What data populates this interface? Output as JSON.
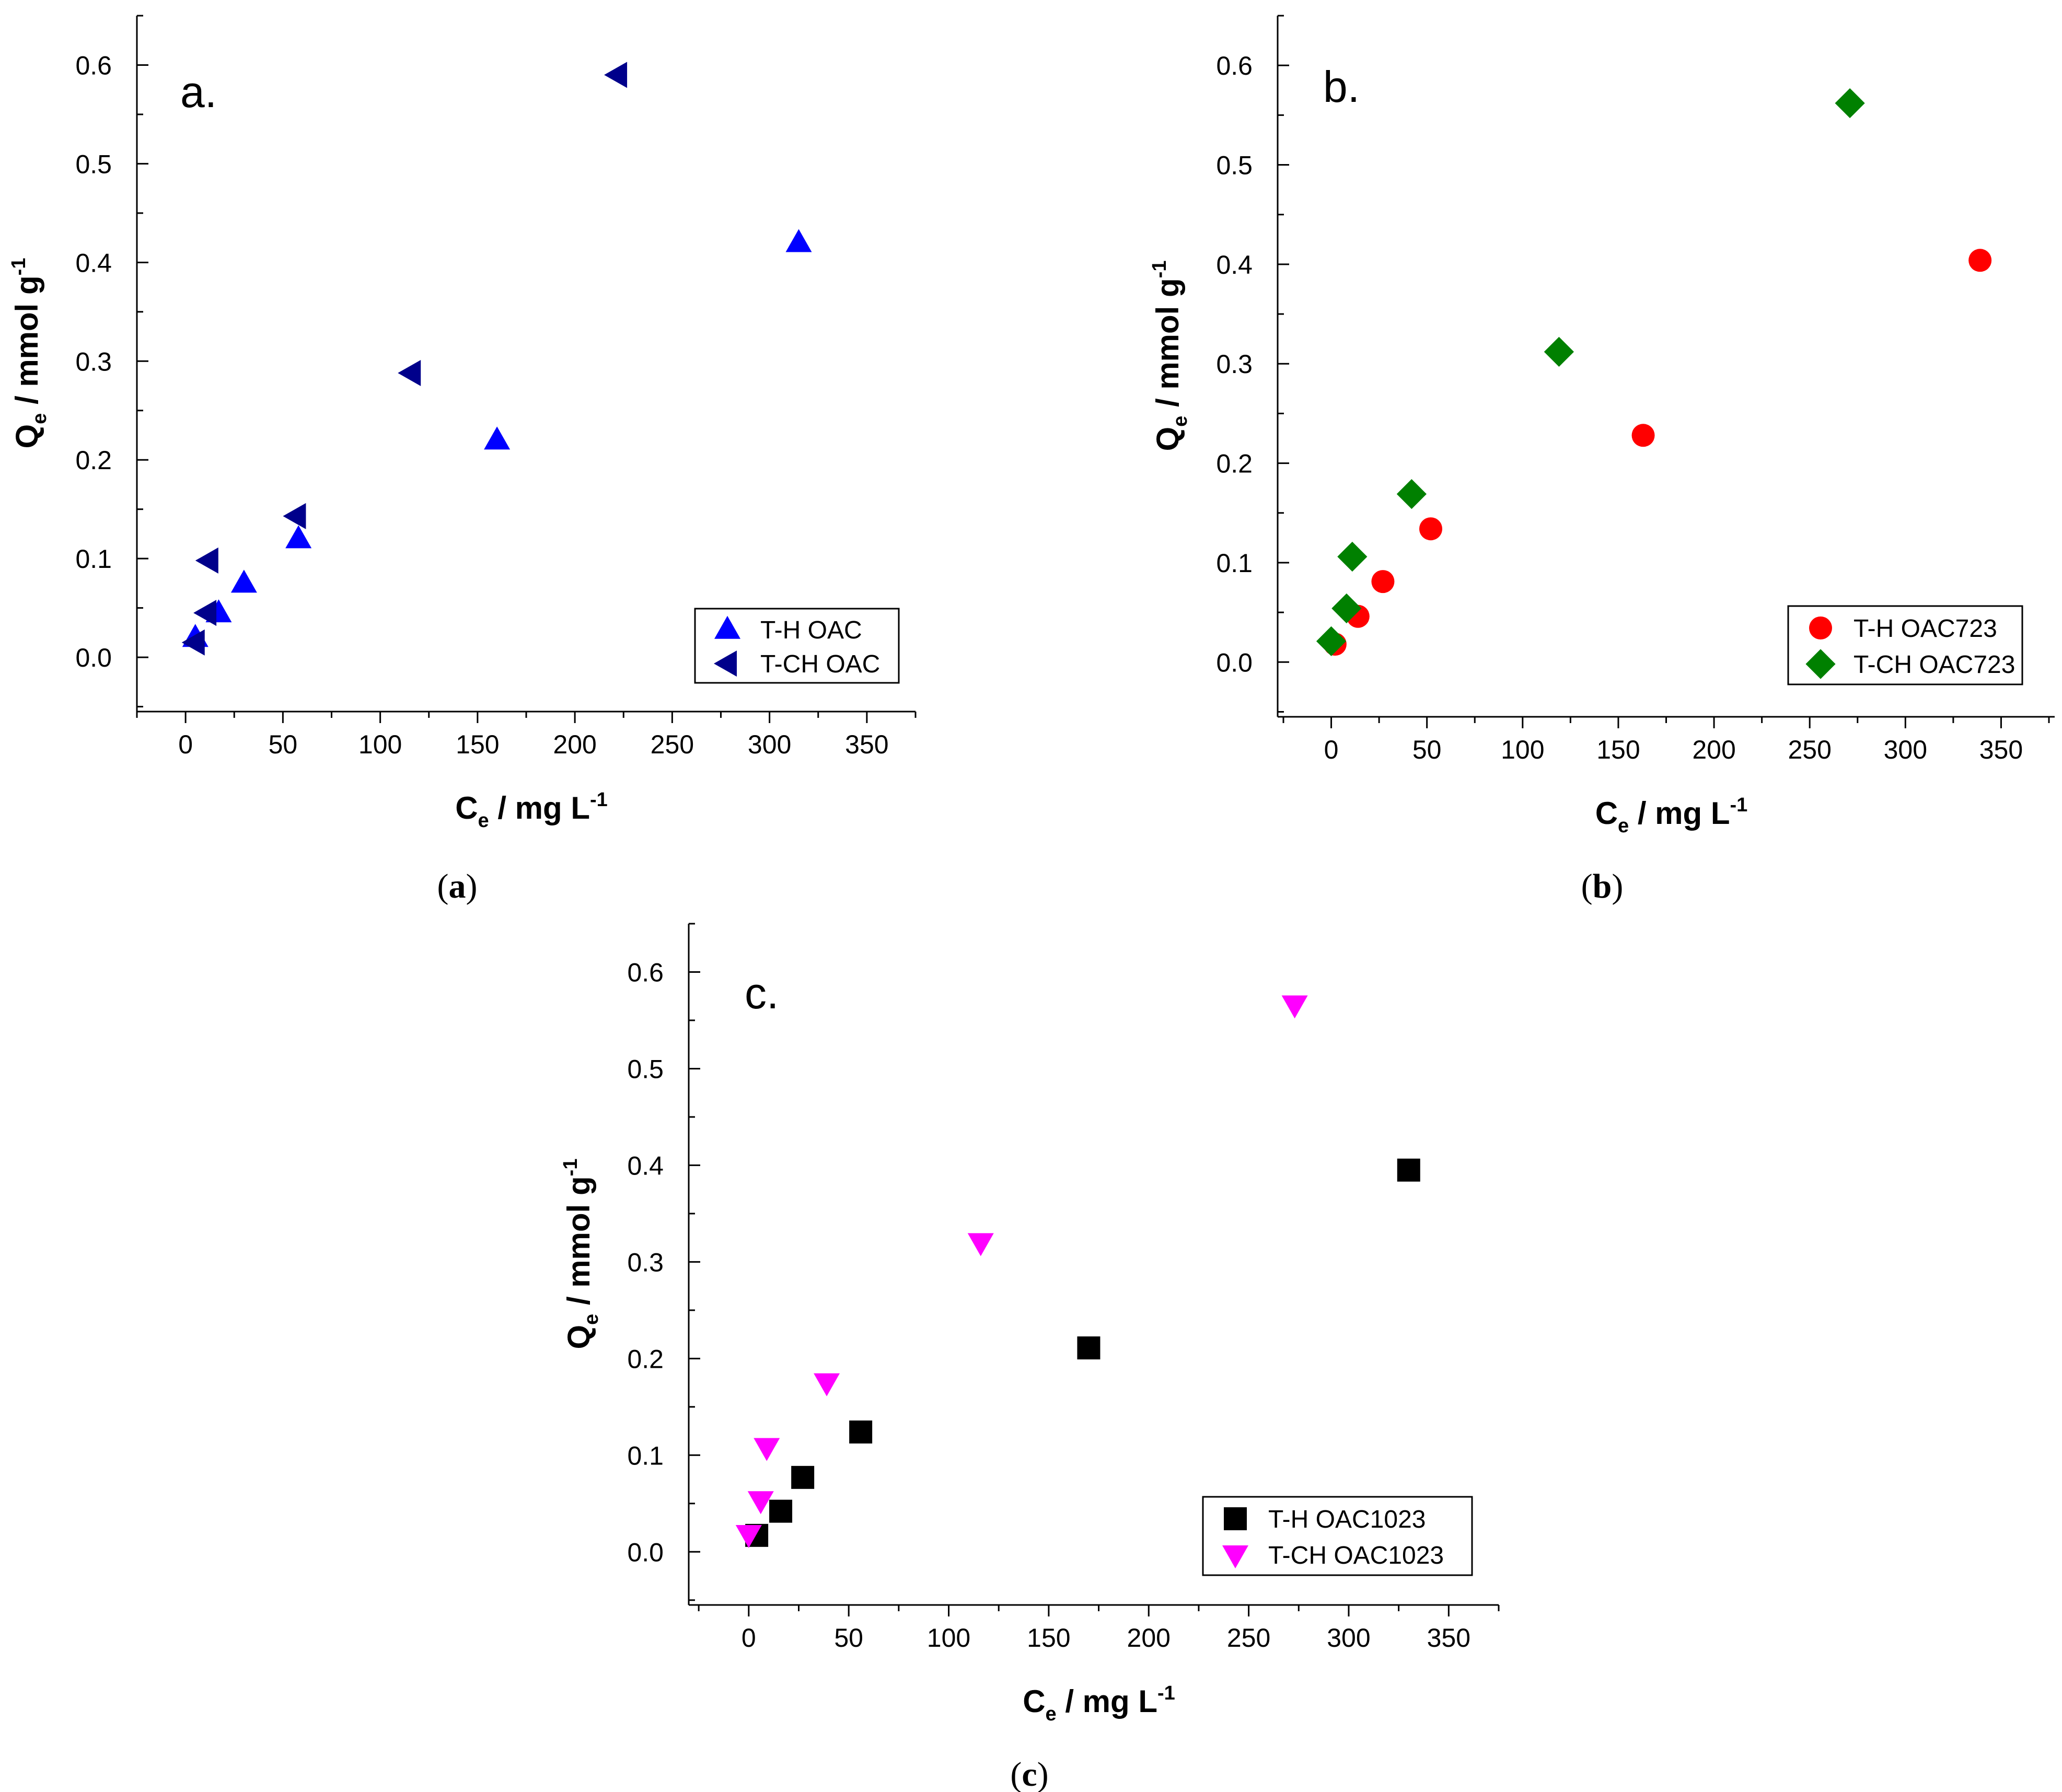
{
  "figure": {
    "captions": [
      "(a)",
      "(b)",
      "(c)"
    ]
  },
  "chart_data": [
    {
      "id": "a",
      "type": "scatter",
      "panel_label": "a.",
      "caption": "(a)",
      "xlabel": "C_e / mg L^-1",
      "ylabel": "Q_e / mmol g^-1",
      "xlim": [
        -25,
        375
      ],
      "ylim": [
        -0.055,
        0.65
      ],
      "xticks": [
        0,
        50,
        100,
        150,
        200,
        250,
        300,
        350
      ],
      "yticks": [
        0.0,
        0.1,
        0.2,
        0.3,
        0.4,
        0.5,
        0.6
      ],
      "ytick_labels": [
        "0.0",
        "0.1",
        "0.2",
        "0.3",
        "0.4",
        "0.5",
        "0.6"
      ],
      "legend_position": "bottom-right",
      "series": [
        {
          "name": "T-H   OAC",
          "marker": "triangle-up",
          "color": "#0000ff",
          "x": [
            5,
            17,
            30,
            58,
            160,
            315
          ],
          "y": [
            0.02,
            0.045,
            0.075,
            0.12,
            0.22,
            0.42
          ]
        },
        {
          "name": "T-CH OAC",
          "marker": "triangle-left",
          "color": "#00008b",
          "x": [
            5,
            11,
            12,
            57,
            116,
            222
          ],
          "y": [
            0.015,
            0.045,
            0.098,
            0.143,
            0.288,
            0.59
          ]
        }
      ]
    },
    {
      "id": "b",
      "type": "scatter",
      "panel_label": "b.",
      "caption": "(b)",
      "xlabel": "C_e / mg L^-1",
      "ylabel": "Q_e / mmol g^-1",
      "xlim": [
        -28,
        378
      ],
      "ylim": [
        -0.055,
        0.65
      ],
      "xticks": [
        0,
        50,
        100,
        150,
        200,
        250,
        300,
        350
      ],
      "yticks": [
        0.0,
        0.1,
        0.2,
        0.3,
        0.4,
        0.5,
        0.6
      ],
      "ytick_labels": [
        "0.0",
        "0.1",
        "0.2",
        "0.3",
        "0.4",
        "0.5",
        "0.6"
      ],
      "legend_position": "bottom-right",
      "series": [
        {
          "name": "T-H    OAC723",
          "marker": "circle",
          "color": "#ff0000",
          "x": [
            2,
            14,
            27,
            52,
            163,
            339
          ],
          "y": [
            0.018,
            0.046,
            0.081,
            0.134,
            0.228,
            0.404
          ]
        },
        {
          "name": "T-CH OAC723",
          "marker": "diamond",
          "color": "#008000",
          "x": [
            0,
            8,
            11,
            42,
            119,
            271
          ],
          "y": [
            0.021,
            0.054,
            0.106,
            0.169,
            0.312,
            0.562
          ]
        }
      ]
    },
    {
      "id": "c",
      "type": "scatter",
      "panel_label": "c.",
      "caption": "(c)",
      "xlabel": "C_e / mg L^-1",
      "ylabel": "Q_e / mmol g^-1",
      "xlim": [
        -30,
        375
      ],
      "ylim": [
        -0.055,
        0.65
      ],
      "xticks": [
        0,
        50,
        100,
        150,
        200,
        250,
        300,
        350
      ],
      "yticks": [
        0.0,
        0.1,
        0.2,
        0.3,
        0.4,
        0.5,
        0.6
      ],
      "ytick_labels": [
        "0.0",
        "0.1",
        "0.2",
        "0.3",
        "0.4",
        "0.5",
        "0.6"
      ],
      "legend_position": "bottom-right",
      "series": [
        {
          "name": "T-H   OAC1023",
          "marker": "square",
          "color": "#000000",
          "x": [
            4,
            16,
            27,
            56,
            170,
            330
          ],
          "y": [
            0.017,
            0.042,
            0.077,
            0.124,
            0.211,
            0.395
          ]
        },
        {
          "name": "T-CH OAC1023",
          "marker": "triangle-down",
          "color": "#ff00ff",
          "x": [
            0,
            6,
            9,
            39,
            116,
            273
          ],
          "y": [
            0.018,
            0.053,
            0.108,
            0.175,
            0.32,
            0.566
          ]
        }
      ]
    }
  ]
}
